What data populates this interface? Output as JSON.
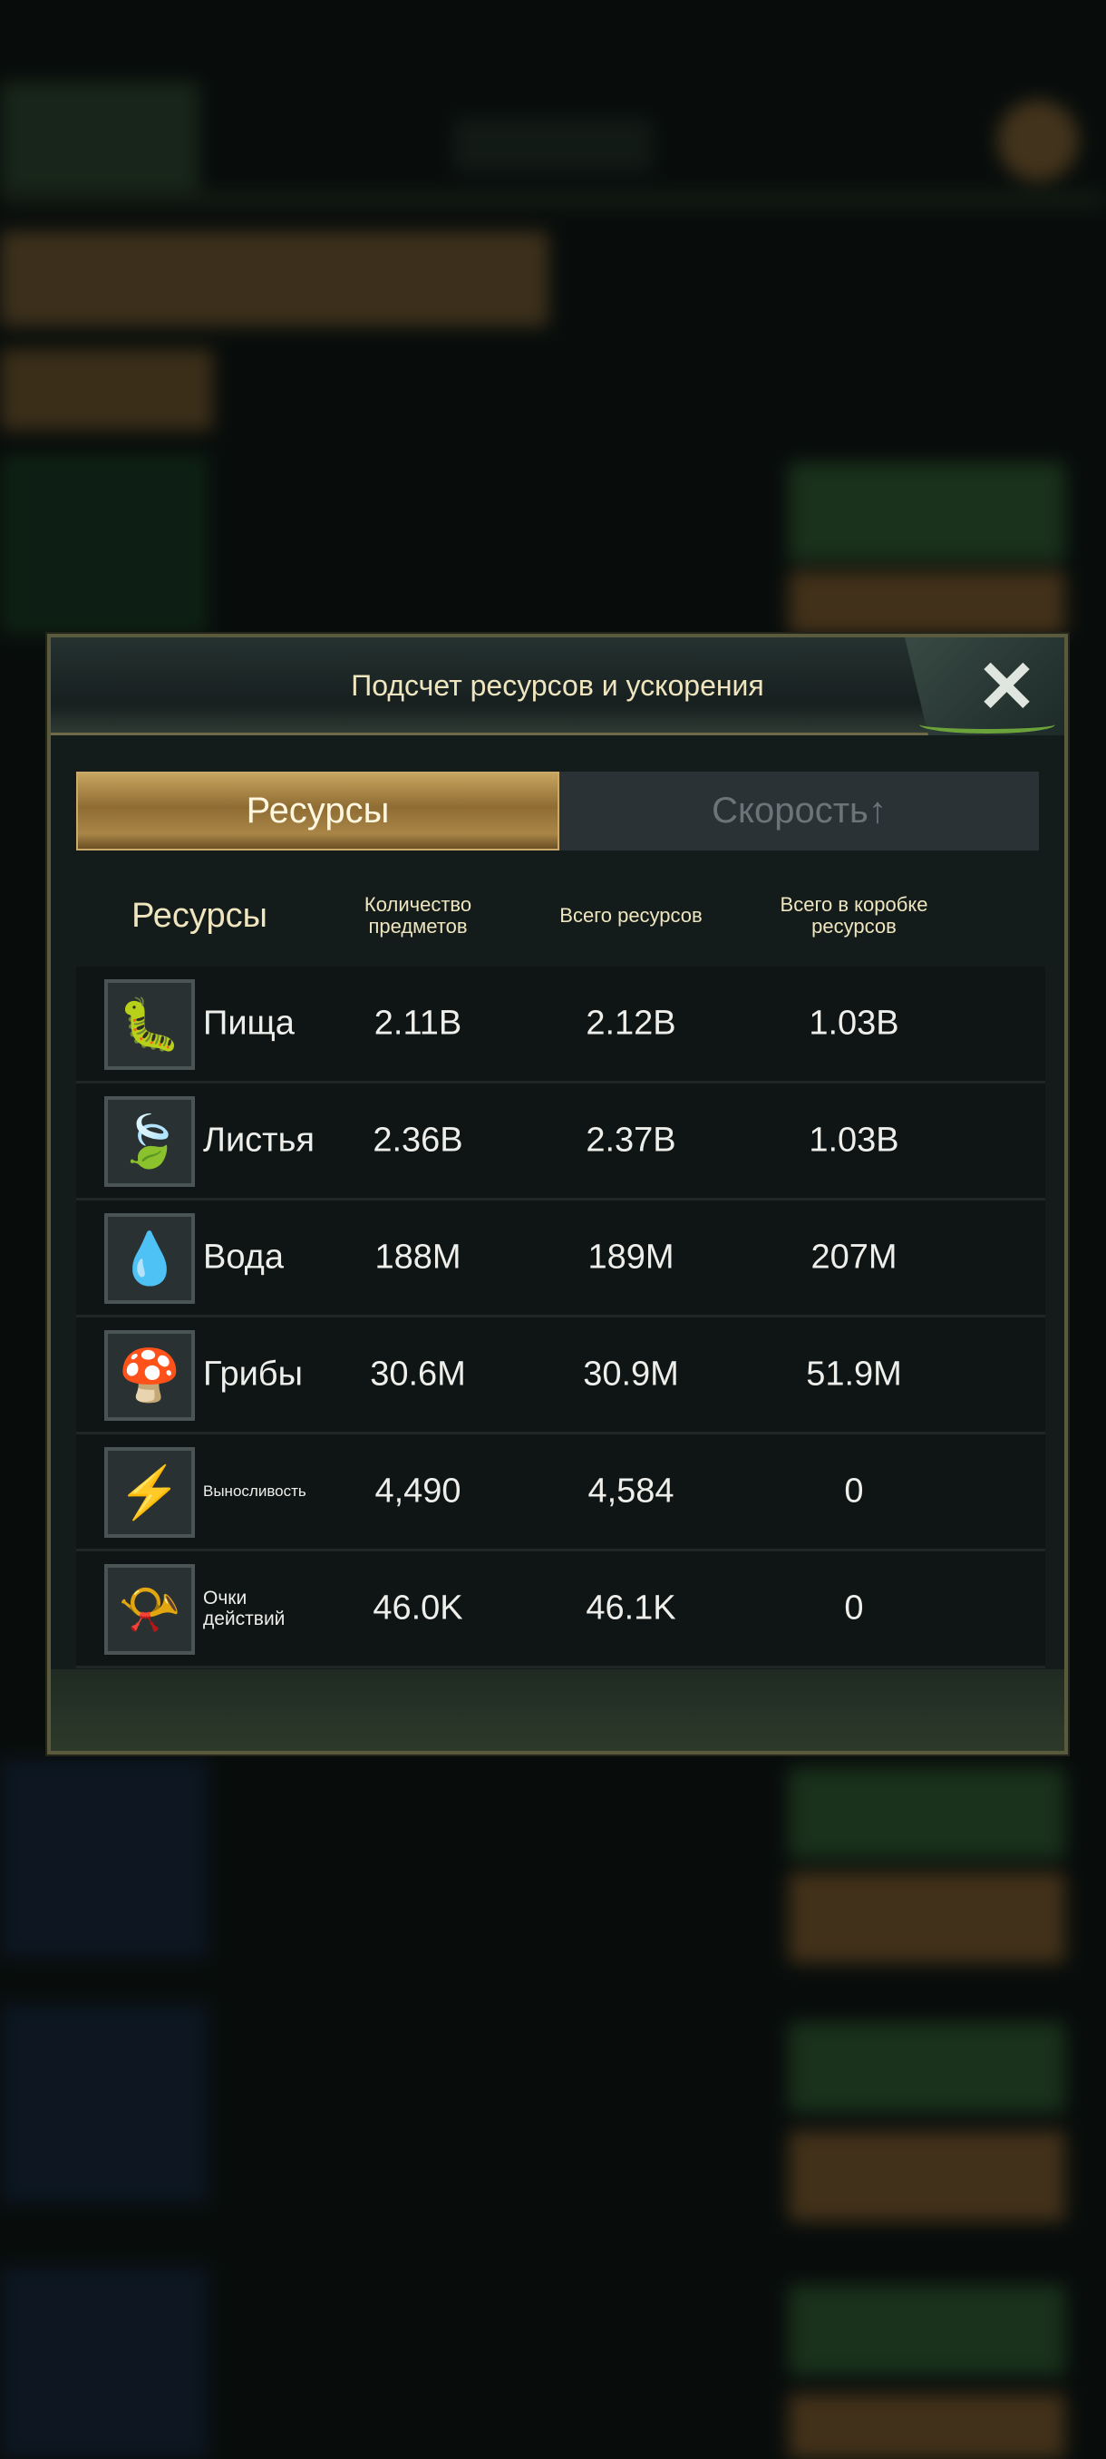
{
  "modal": {
    "title": "Подсчет ресурсов и ускорения",
    "close_icon": "x-close-icon",
    "tabs": [
      {
        "label": "Ресурсы",
        "active": true
      },
      {
        "label": "Скорость↑",
        "active": false
      }
    ],
    "columns": [
      "Ресурсы",
      "Количество предметов",
      "Всего ресурсов",
      "Всего в коробке ресурсов"
    ],
    "rows": [
      {
        "name": "Пища",
        "icon": "food-larva-icon",
        "items": "2.11B",
        "total": "2.12B",
        "box": "1.03B"
      },
      {
        "name": "Листья",
        "icon": "leaf-icon",
        "items": "2.36B",
        "total": "2.37B",
        "box": "1.03B"
      },
      {
        "name": "Вода",
        "icon": "water-drop-icon",
        "items": "188M",
        "total": "189M",
        "box": "207M"
      },
      {
        "name": "Грибы",
        "icon": "mushroom-icon",
        "items": "30.6M",
        "total": "30.9M",
        "box": "51.9M"
      },
      {
        "name": "Выносливость",
        "icon": "stamina-lightning-icon",
        "items": "4,490",
        "total": "4,584",
        "box": "0"
      },
      {
        "name": "Очки действий",
        "icon": "horn-icon",
        "items": "46.0K",
        "total": "46.1K",
        "box": "0"
      }
    ]
  },
  "colors": {
    "accent_gold": "#b08a4a",
    "title_text": "#efe6bf",
    "panel": "#141b1b"
  }
}
